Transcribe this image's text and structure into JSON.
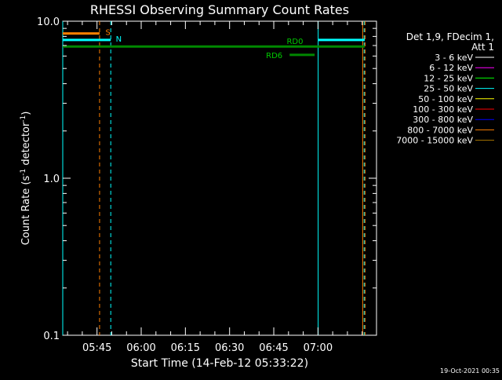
{
  "chart_data": {
    "type": "line",
    "title": "RHESSI Observing Summary Count Rates",
    "xlabel": "Start Time (14-Feb-12 05:33:22)",
    "ylabel_parts": [
      "Count Rate (s",
      "-1",
      " detector",
      "-1",
      ")"
    ],
    "y_scale": "log",
    "ylim": [
      0.1,
      10.0
    ],
    "y_ticks": [
      {
        "value": 0.1,
        "label": "0.1"
      },
      {
        "value": 1.0,
        "label": "1.0"
      },
      {
        "value": 10.0,
        "label": "10.0"
      }
    ],
    "x_unit": "minutes since 05:33:22",
    "xlim_minutes": [
      0,
      106.5
    ],
    "x_ticks": [
      {
        "value": 11.63,
        "label": "05:45"
      },
      {
        "value": 26.63,
        "label": "06:00"
      },
      {
        "value": 41.63,
        "label": "06:15"
      },
      {
        "value": 56.63,
        "label": "06:30"
      },
      {
        "value": 71.63,
        "label": "06:45"
      },
      {
        "value": 86.63,
        "label": "07:00"
      }
    ],
    "flag_bars": [
      {
        "label": "S",
        "color": "#ff7f00",
        "y": 8.35,
        "x_start": 0,
        "x_end": 12.5,
        "label_x": 14.5
      },
      {
        "label": "N",
        "color": "#00ffff",
        "y": 7.6,
        "x_start": 0,
        "x_end": 16.3,
        "label_x": 18.0
      },
      {
        "label": "",
        "color": "#00ffff",
        "y": 7.6,
        "x_start": 86.7,
        "x_end": 102.5,
        "label_x": null
      },
      {
        "label": "RD0",
        "color": "#008800",
        "y": 6.9,
        "x_start": 0,
        "x_end": 102.5,
        "label_x": 76.0,
        "label_pos": "above"
      },
      {
        "label": "RD6",
        "color": "#008800",
        "y": 6.1,
        "x_start": 77.0,
        "x_end": 85.5,
        "label_x": 69.0,
        "label_pos": "left"
      }
    ],
    "vlines": [
      {
        "x": 0.0,
        "color": "#00ffff",
        "style": "solid"
      },
      {
        "x": 12.5,
        "color": "#ff7f00",
        "style": "dashed"
      },
      {
        "x": 16.3,
        "color": "#00ffff",
        "style": "dashed"
      },
      {
        "x": 86.7,
        "color": "#00ffff",
        "style": "solid"
      },
      {
        "x": 101.8,
        "color": "#ff7f00",
        "style": "solid"
      },
      {
        "x": 102.3,
        "color": "#00ffff",
        "style": "dashed"
      },
      {
        "x": 102.6,
        "color": "#ff7f00",
        "style": "dashed"
      }
    ]
  },
  "legend": {
    "header": [
      "Det 1,9, FDecim 1,",
      "Att 1"
    ],
    "entries": [
      {
        "label": "3 - 6 keV",
        "color": "#ffffff"
      },
      {
        "label": "6 - 12 keV",
        "color": "#ff00ff"
      },
      {
        "label": "12 - 25 keV",
        "color": "#00ff00"
      },
      {
        "label": "25 - 50 keV",
        "color": "#00ffff"
      },
      {
        "label": "50 - 100 keV",
        "color": "#ffff00"
      },
      {
        "label": "100 - 300 keV",
        "color": "#ff0000"
      },
      {
        "label": "300 - 800 keV",
        "color": "#0000ff"
      },
      {
        "label": "800 - 7000 keV",
        "color": "#ff7f00"
      },
      {
        "label": "7000 - 15000 keV",
        "color": "#aa7700"
      }
    ]
  },
  "footer": {
    "timestamp": "19-Oct-2021 00:35"
  }
}
